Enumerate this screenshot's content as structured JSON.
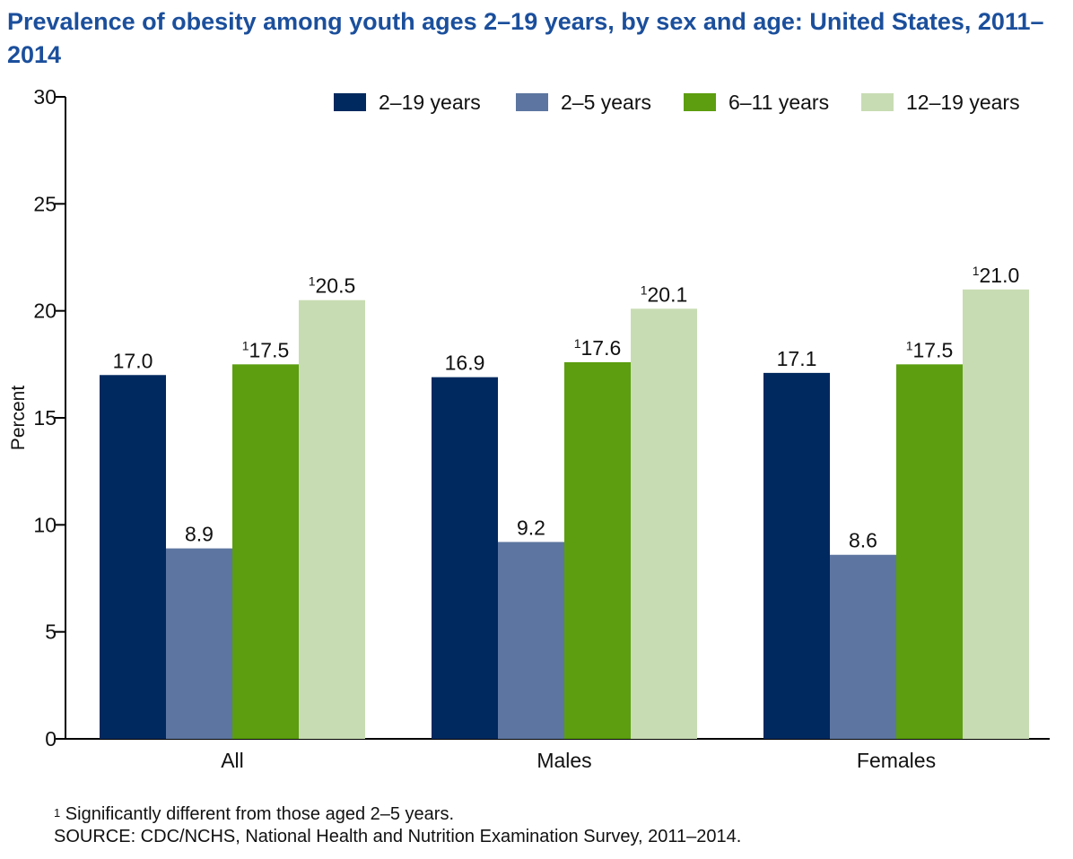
{
  "title": "Prevalence of obesity among youth ages 2–19 years, by sex and age: United States, 2011–2014",
  "footnote": {
    "mark": "1",
    "text": "Significantly different from those aged 2–5 years."
  },
  "source": "SOURCE: CDC/NCHS, National Health and Nutrition Examination Survey, 2011–2014.",
  "colors": {
    "title": "#1b4f9c",
    "series": [
      "#00295f",
      "#5d76a1",
      "#5c9e0f",
      "#c8dcb3"
    ]
  },
  "chart_data": {
    "type": "bar",
    "title": "Prevalence of obesity among youth ages 2–19 years, by sex and age: United States, 2011–2014",
    "xlabel": "",
    "ylabel": "Percent",
    "ylim": [
      0,
      30
    ],
    "yticks": [
      0,
      5,
      10,
      15,
      20,
      25,
      30
    ],
    "grid": false,
    "legend_position": "top-right",
    "categories": [
      "All",
      "Males",
      "Females"
    ],
    "series": [
      {
        "name": "2–19 years",
        "values": [
          17.0,
          16.9,
          17.1
        ],
        "labels": [
          "17.0",
          "16.9",
          "17.1"
        ],
        "significant": [
          false,
          false,
          false
        ]
      },
      {
        "name": "2–5 years",
        "values": [
          8.9,
          9.2,
          8.6
        ],
        "labels": [
          "8.9",
          "9.2",
          "8.6"
        ],
        "significant": [
          false,
          false,
          false
        ]
      },
      {
        "name": "6–11 years",
        "values": [
          17.5,
          17.6,
          17.5
        ],
        "labels": [
          "17.5",
          "17.6",
          "17.5"
        ],
        "significant": [
          true,
          true,
          true
        ]
      },
      {
        "name": "12–19 years",
        "values": [
          20.5,
          20.1,
          21.0
        ],
        "labels": [
          "20.5",
          "20.1",
          "21.0"
        ],
        "significant": [
          true,
          true,
          true
        ]
      }
    ]
  }
}
